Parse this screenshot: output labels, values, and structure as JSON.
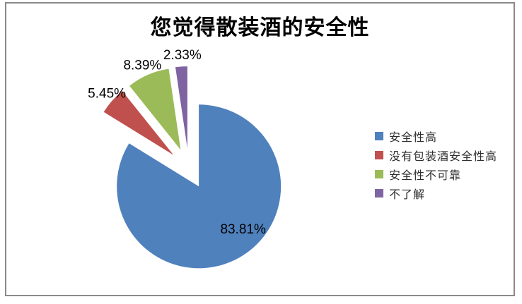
{
  "chart_data": {
    "type": "pie",
    "title": "您觉得散装酒的安全性",
    "categories": [
      "安全性高",
      "没有包装酒安全性高",
      "安全性不可靠",
      "不了解"
    ],
    "values": [
      83.81,
      5.45,
      8.39,
      2.33
    ],
    "labels": [
      "83.81%",
      "5.45%",
      "8.39%",
      "2.33%"
    ],
    "colors": [
      "#4F81BD",
      "#C0504D",
      "#9BBB59",
      "#8064A2"
    ],
    "legend_position": "right",
    "legend_entries": [
      "安全性高",
      "没有包装酒安全性高",
      "安全性不可靠",
      "不了解"
    ],
    "pie_style": "exploded",
    "start_angle_deg": 0,
    "direction": "clockwise",
    "grid": false
  }
}
